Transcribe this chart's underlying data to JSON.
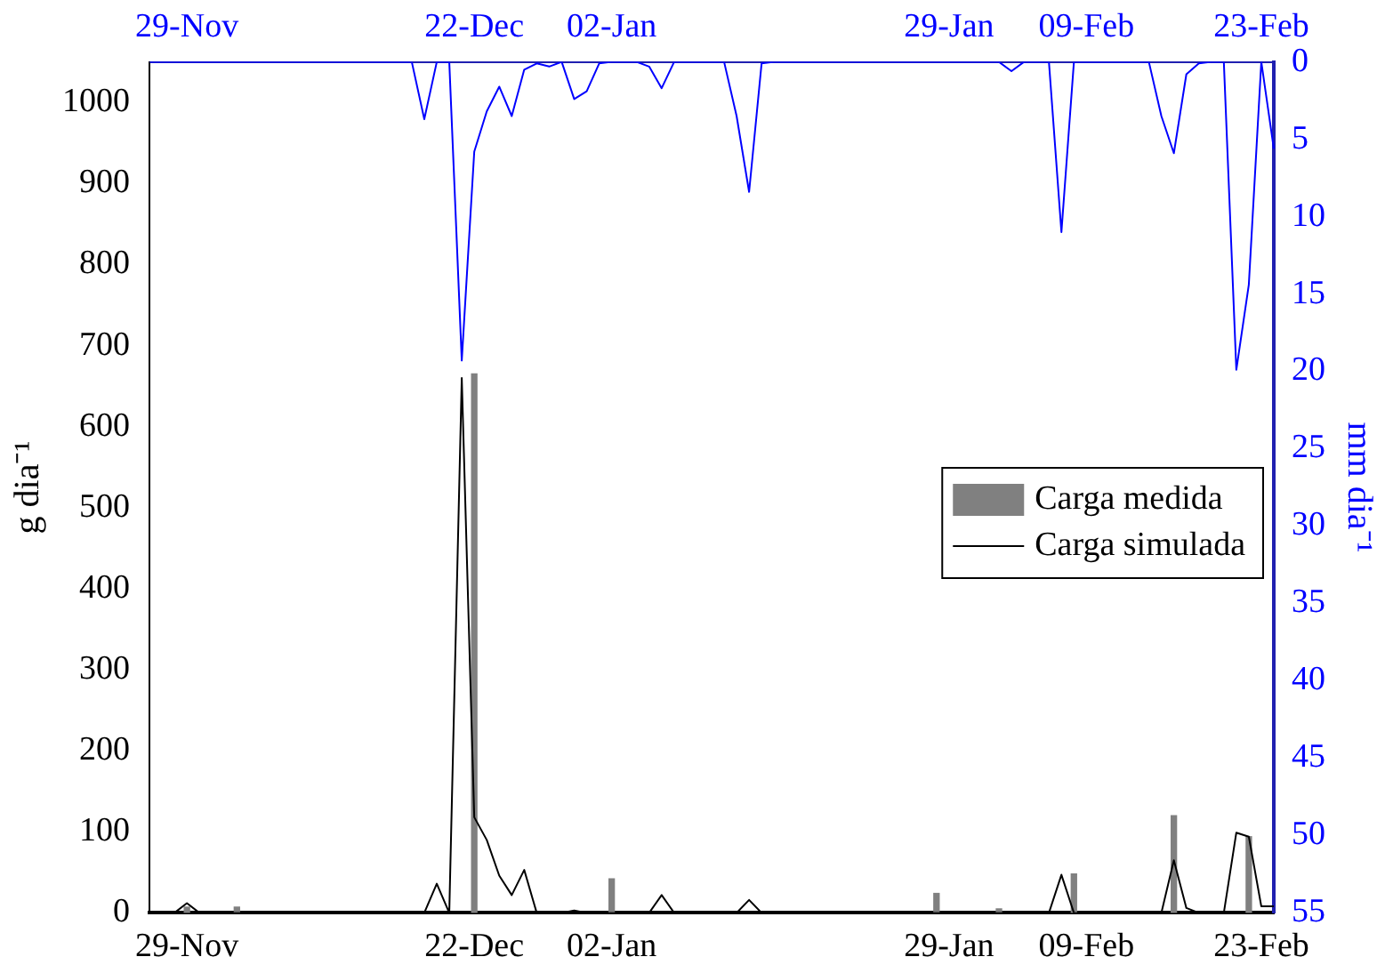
{
  "chart_data": {
    "type": "bar",
    "ylabel": "g dia⁻¹",
    "y2label": "mm dia⁻¹",
    "categories": [
      null,
      null,
      null,
      "29-Nov",
      null,
      null,
      null,
      null,
      null,
      null,
      null,
      null,
      null,
      null,
      null,
      null,
      null,
      null,
      null,
      null,
      null,
      null,
      null,
      null,
      null,
      null,
      "22-Dec",
      null,
      null,
      null,
      null,
      null,
      null,
      null,
      null,
      null,
      null,
      "02-Jan",
      null,
      null,
      null,
      null,
      null,
      null,
      null,
      null,
      null,
      null,
      null,
      null,
      null,
      null,
      null,
      null,
      null,
      null,
      null,
      null,
      null,
      null,
      null,
      null,
      null,
      null,
      "29-Jan",
      null,
      null,
      null,
      null,
      null,
      null,
      null,
      null,
      null,
      null,
      "09-Feb",
      null,
      null,
      null,
      null,
      null,
      null,
      null,
      null,
      null,
      null,
      null,
      null,
      null,
      "23-Feb",
      null
    ],
    "ylim": [
      0,
      1050
    ],
    "yticks": [
      0,
      100,
      200,
      300,
      400,
      500,
      600,
      700,
      800,
      900,
      1000
    ],
    "y2lim": [
      55,
      0
    ],
    "y2ticks": [
      0,
      5,
      10,
      15,
      20,
      25,
      30,
      35,
      40,
      45,
      50,
      55
    ],
    "grid": false,
    "legend": "right",
    "marker": "none",
    "line_style": "solid",
    "series": [
      {
        "name": "Carga medida",
        "color": "#808080",
        "values": [
          null,
          null,
          null,
          7,
          null,
          null,
          null,
          7,
          null,
          null,
          null,
          null,
          null,
          null,
          null,
          null,
          null,
          null,
          null,
          null,
          null,
          null,
          null,
          null,
          null,
          null,
          665,
          null,
          null,
          null,
          null,
          null,
          null,
          null,
          null,
          null,
          null,
          42,
          null,
          null,
          null,
          null,
          null,
          null,
          null,
          null,
          null,
          null,
          null,
          null,
          null,
          null,
          null,
          null,
          null,
          null,
          null,
          null,
          null,
          null,
          null,
          null,
          null,
          24,
          null,
          null,
          null,
          null,
          5,
          null,
          null,
          null,
          null,
          null,
          48,
          null,
          null,
          null,
          null,
          null,
          null,
          null,
          120,
          null,
          null,
          null,
          null,
          null,
          94,
          null,
          null
        ]
      },
      {
        "name": "Carga simulada",
        "type": "line",
        "color": "#000000",
        "values": [
          0,
          0,
          0,
          12,
          0,
          0,
          0,
          0,
          0,
          0,
          0,
          0,
          0,
          0,
          0,
          0,
          0,
          0,
          0,
          0,
          0,
          0,
          0,
          36,
          0,
          660,
          118,
          90,
          46,
          22,
          53,
          0,
          0,
          0,
          3,
          0,
          0,
          0,
          0,
          0,
          0,
          22,
          0,
          0,
          0,
          0,
          0,
          0,
          16,
          0,
          0,
          0,
          0,
          0,
          0,
          0,
          0,
          0,
          0,
          0,
          0,
          0,
          0,
          0,
          0,
          0,
          0,
          0,
          0,
          0,
          0,
          0,
          0,
          47,
          0,
          0,
          0,
          0,
          0,
          0,
          0,
          0,
          65,
          6,
          0,
          0,
          0,
          99,
          94,
          8,
          8
        ]
      },
      {
        "type": "line",
        "axis": "y2",
        "color": "#0000ff",
        "values": [
          0,
          0,
          0,
          0,
          0,
          0,
          0,
          0,
          0,
          0,
          0,
          0,
          0,
          0,
          0,
          0,
          0,
          0,
          0,
          0,
          0,
          0,
          3.7,
          0,
          0,
          19.3,
          5.8,
          3.2,
          1.6,
          3.5,
          0.5,
          0.1,
          0.3,
          0,
          2.4,
          1.9,
          0.1,
          0,
          0,
          0,
          0.3,
          1.7,
          0,
          0,
          0,
          0,
          0,
          3.5,
          8.4,
          0.1,
          0,
          0,
          0,
          0,
          0,
          0,
          0,
          0,
          0,
          0,
          0,
          0,
          0,
          0,
          0,
          0,
          0,
          0,
          0,
          0.6,
          0,
          0,
          0,
          11,
          0,
          0,
          0,
          0,
          0,
          0,
          0,
          3.5,
          5.9,
          0.8,
          0.1,
          0,
          0,
          19.9,
          14.4,
          0,
          5.6
        ]
      }
    ]
  }
}
